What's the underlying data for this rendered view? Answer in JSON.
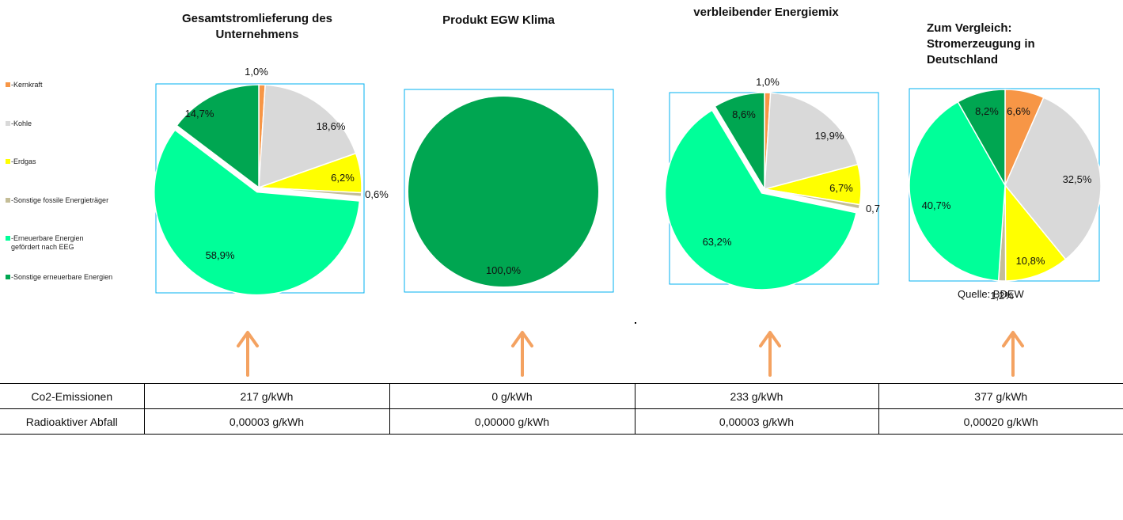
{
  "legend": {
    "items": [
      {
        "label": "-Kernkraft",
        "color": "#f79646"
      },
      {
        "label": "-Kohle",
        "color": "#d9d9d9"
      },
      {
        "label": "-Erdgas",
        "color": "#ffff00"
      },
      {
        "label": "-Sonstige fossile Energieträger",
        "color": "#c4bd97"
      },
      {
        "label": "-Erneuerbare Energien gefördert nach EEG",
        "color": "#00ff99"
      },
      {
        "label": "-Sonstige erneuerbare Energien",
        "color": "#00a651"
      }
    ]
  },
  "titles": {
    "chart1": "Gesamtstromlieferung des Unternehmens",
    "chart2": "Produkt EGW Klima",
    "chart3": "verbleibender Energiemix",
    "chart4": "Zum Vergleich: Stromerzeugung in Deutschland"
  },
  "source_note": "Quelle: BDEW",
  "chart_data": [
    {
      "type": "pie",
      "title": "Gesamtstromlieferung des Unternehmens",
      "categories": [
        "Kernkraft",
        "Kohle",
        "Erdgas",
        "Sonstige fossile Energieträger",
        "Erneuerbare Energien gefördert nach EEG",
        "Sonstige erneuerbare Energien"
      ],
      "values": [
        1.0,
        18.6,
        6.2,
        0.6,
        58.9,
        14.7
      ],
      "labels": [
        "1,0%",
        "18,6%",
        "6,2%",
        "0,6%",
        "58,9%",
        "14,7%"
      ],
      "exploded": [
        false,
        false,
        false,
        false,
        true,
        false
      ]
    },
    {
      "type": "pie",
      "title": "Produkt EGW Klima",
      "categories": [
        "Sonstige erneuerbare Energien"
      ],
      "values": [
        100.0
      ],
      "labels": [
        "100,0%"
      ]
    },
    {
      "type": "pie",
      "title": "verbleibender Energiemix",
      "categories": [
        "Kernkraft",
        "Kohle",
        "Erdgas",
        "Sonstige fossile Energieträger",
        "Erneuerbare Energien gefördert nach EEG",
        "Sonstige erneuerbare Energien"
      ],
      "values": [
        1.0,
        19.9,
        6.7,
        0.7,
        63.2,
        8.6
      ],
      "labels": [
        "1,0%",
        "19,9%",
        "6,7%",
        "0,7",
        "63,2%",
        "8,6%"
      ],
      "exploded": [
        false,
        false,
        false,
        false,
        true,
        false
      ]
    },
    {
      "type": "pie",
      "title": "Zum Vergleich: Stromerzeugung in Deutschland",
      "categories": [
        "Kernkraft",
        "Kohle",
        "Erdgas",
        "Sonstige fossile Energieträger",
        "Erneuerbare Energien gefördert nach EEG",
        "Sonstige erneuerbare Energien"
      ],
      "values": [
        6.6,
        32.5,
        10.8,
        1.2,
        40.7,
        8.2
      ],
      "labels": [
        "6,6%",
        "32,5%",
        "10,8%",
        "1,2%",
        "40,7%",
        "8,2%"
      ],
      "exploded": [
        false,
        false,
        false,
        false,
        false,
        false
      ]
    }
  ],
  "table": {
    "rows": [
      {
        "label": "Co2-Emissionen",
        "values": [
          "217 g/kWh",
          "0 g/kWh",
          "233 g/kWh",
          "377 g/kWh"
        ]
      },
      {
        "label": "Radioaktiver Abfall",
        "values": [
          "0,00003 g/kWh",
          "0,00000 g/kWh",
          "0,00003 g/kWh",
          "0,00020 g/kWh"
        ]
      }
    ]
  }
}
